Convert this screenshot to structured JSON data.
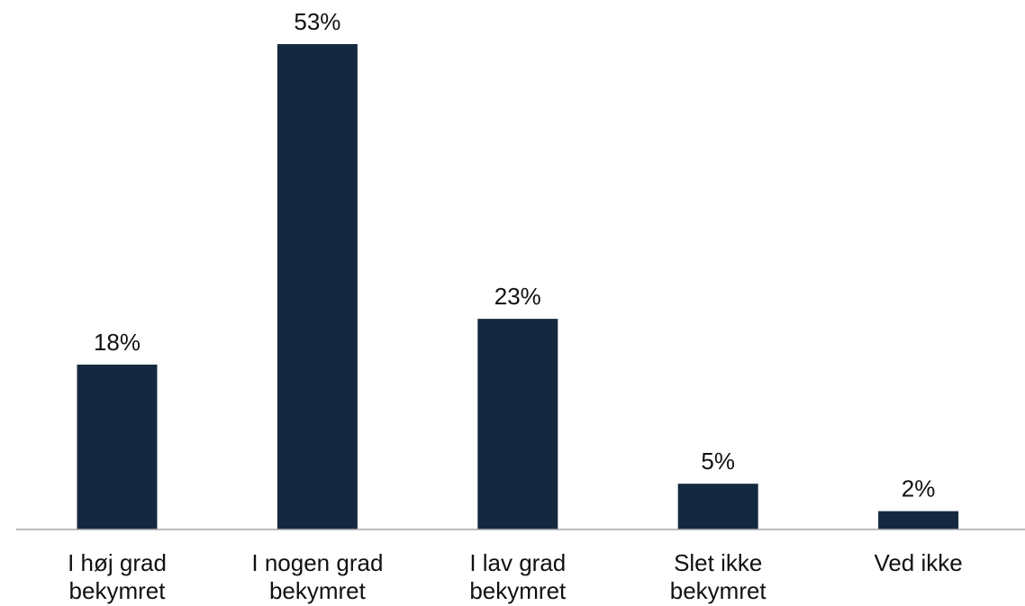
{
  "chart_data": {
    "type": "bar",
    "categories": [
      [
        "I høj grad",
        "bekymret"
      ],
      [
        "I nogen grad",
        "bekymret"
      ],
      [
        "I lav grad",
        "bekymret"
      ],
      [
        "Slet ikke",
        "bekymret"
      ],
      [
        "Ved ikke"
      ]
    ],
    "values": [
      18,
      53,
      23,
      5,
      2
    ],
    "value_labels": [
      "18%",
      "53%",
      "23%",
      "5%",
      "2%"
    ],
    "ylim": [
      0,
      53
    ],
    "grid": false,
    "legend": "none",
    "colors": {
      "bar": "#14293f",
      "axis": "#a6a6a6",
      "text": "#111111"
    }
  }
}
